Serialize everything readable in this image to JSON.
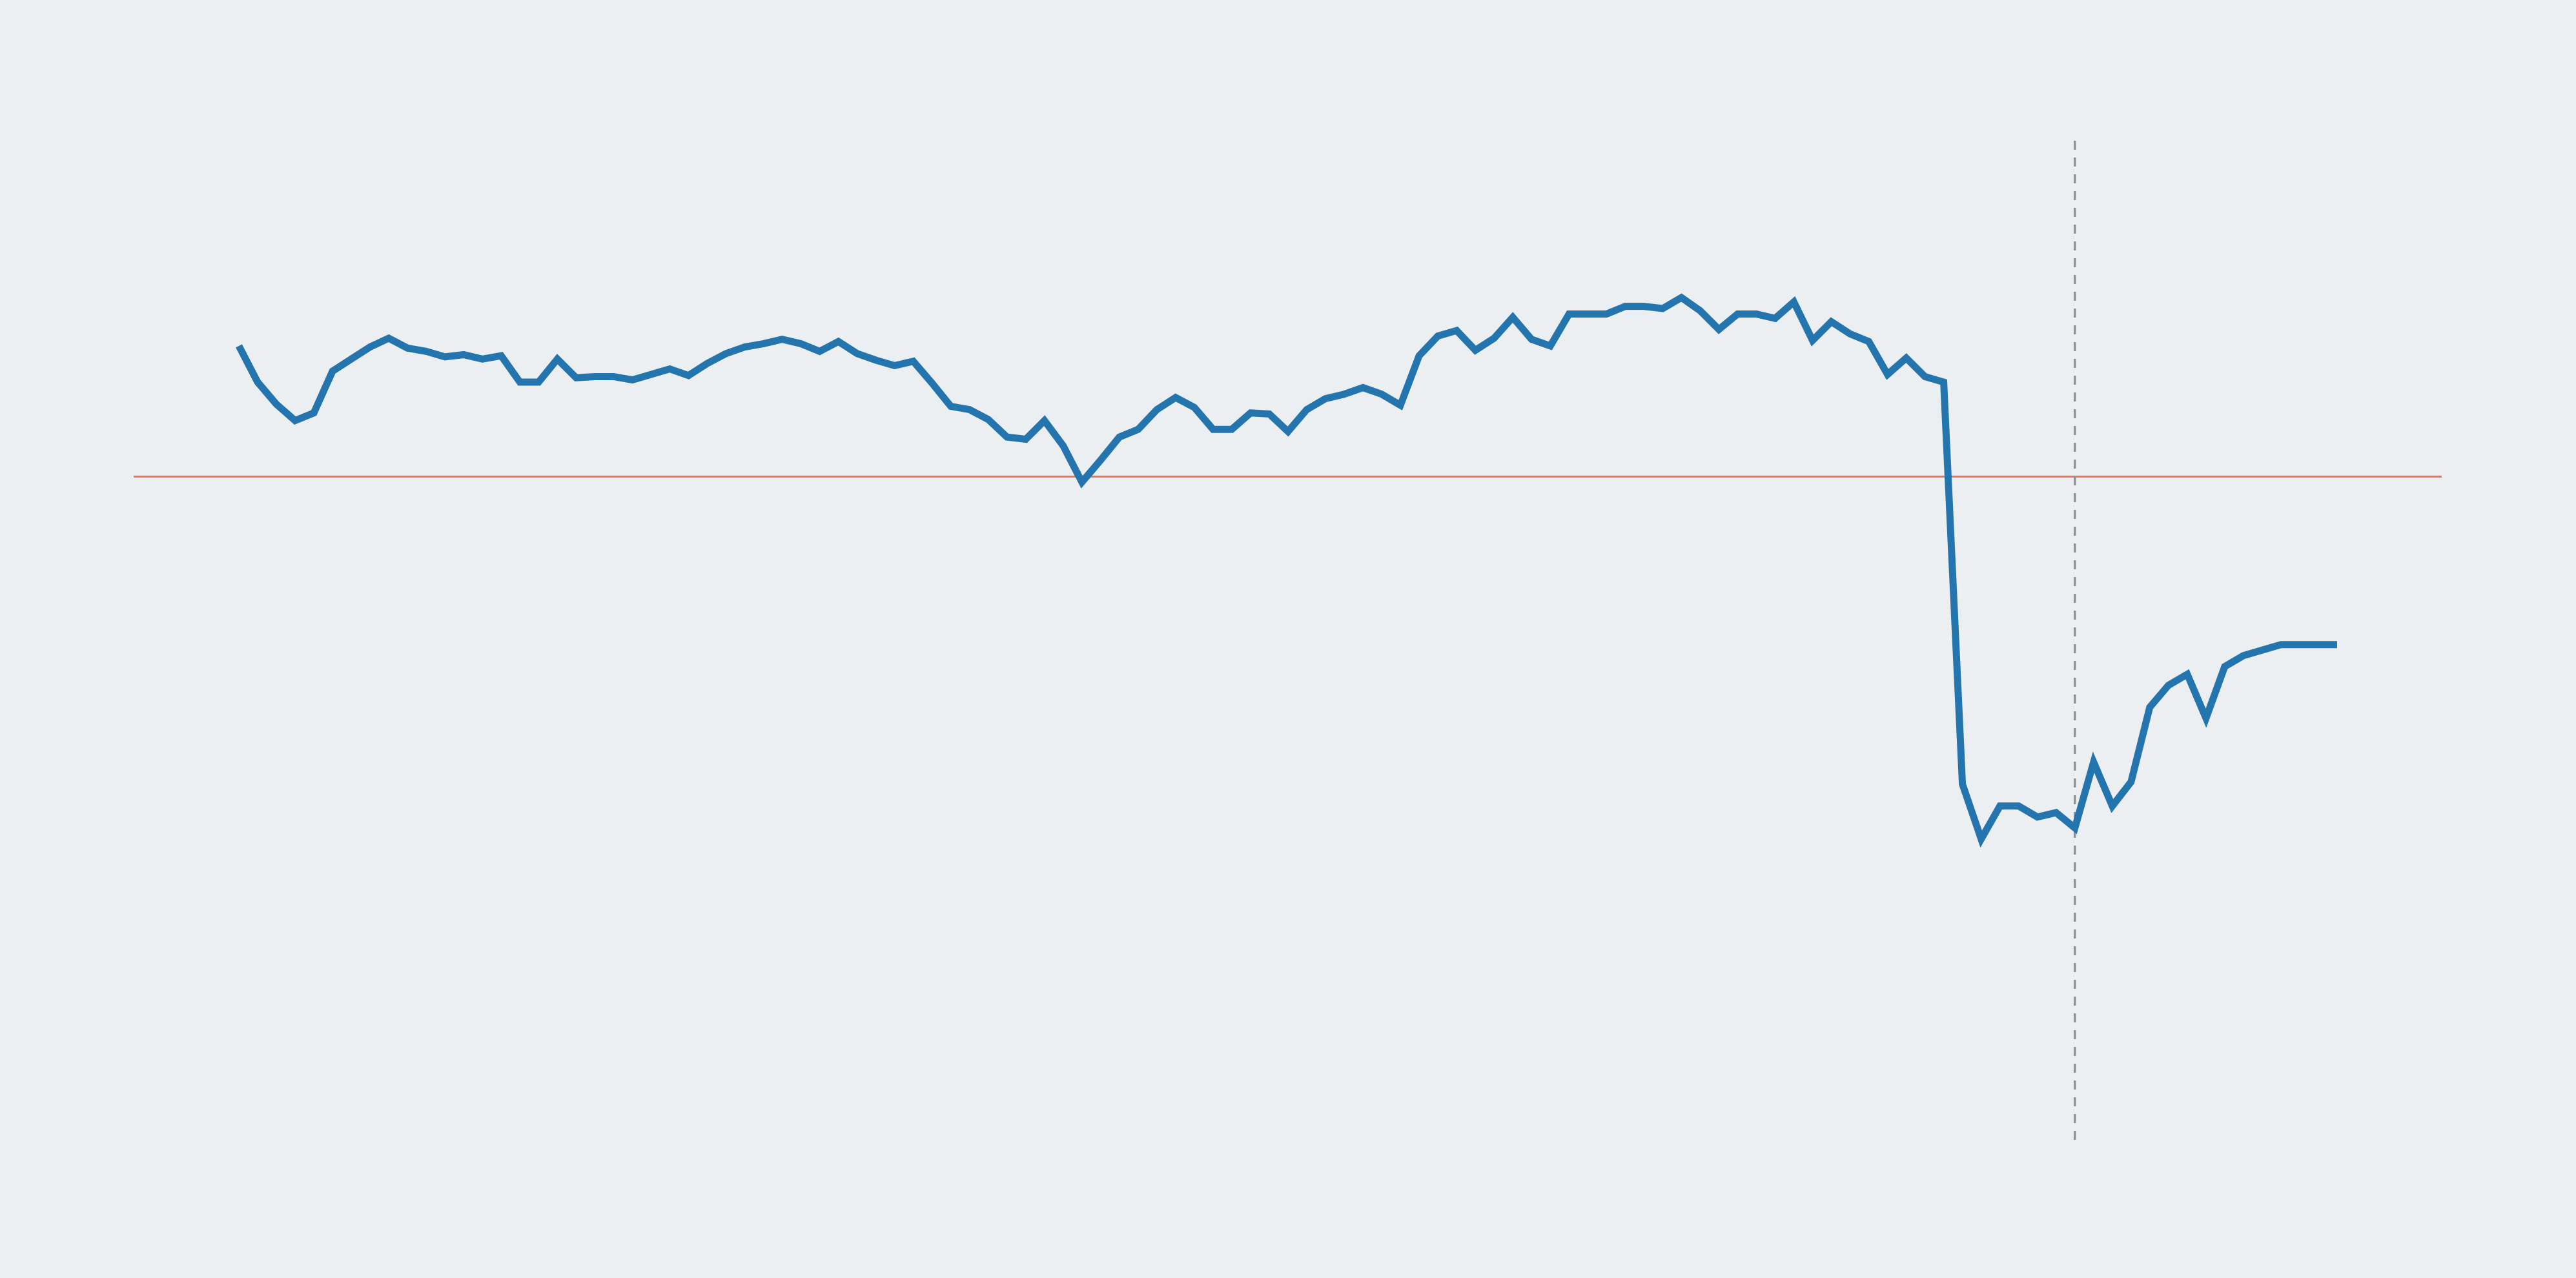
{
  "chart_data": {
    "type": "line",
    "title": "",
    "xlabel": "",
    "ylabel": "",
    "grid": false,
    "legend": "none",
    "x_start": 1,
    "x_end": 113,
    "ylim": [
      -43,
      24
    ],
    "baseline": {
      "value": 0,
      "color": "#e8765a"
    },
    "marker": {
      "x": 99,
      "color": "#8f9398"
    },
    "series": [
      {
        "color": "#2474ad",
        "values": [
          11.9,
          8.6,
          6.6,
          5.1,
          5.8,
          9.6,
          10.7,
          11.8,
          12.6,
          11.7,
          11.4,
          10.9,
          11.1,
          10.7,
          11.0,
          8.6,
          8.6,
          10.7,
          9.0,
          9.1,
          9.1,
          8.8,
          9.3,
          9.8,
          9.2,
          10.3,
          11.2,
          11.8,
          12.1,
          12.5,
          12.1,
          11.4,
          12.3,
          11.2,
          10.6,
          10.1,
          10.5,
          8.5,
          6.4,
          6.1,
          5.2,
          3.6,
          3.4,
          5.1,
          2.8,
          -0.5,
          1.5,
          3.6,
          4.3,
          6.1,
          7.2,
          6.3,
          4.3,
          4.3,
          5.8,
          5.7,
          4.1,
          6.1,
          7.1,
          7.5,
          8.1,
          7.5,
          6.5,
          11.0,
          12.8,
          13.3,
          11.5,
          12.6,
          14.5,
          12.5,
          11.9,
          14.8,
          14.8,
          14.8,
          15.5,
          15.5,
          15.3,
          16.3,
          15.1,
          13.4,
          14.8,
          14.8,
          14.4,
          15.9,
          12.4,
          14.1,
          13.0,
          12.3,
          9.3,
          10.8,
          9.1,
          8.6,
          -28.0,
          -33.0,
          -30.0,
          -30.0,
          -31.0,
          -30.6,
          -32.0,
          -26.0,
          -30.0,
          -27.8,
          -21.0,
          -19.0,
          -18.0,
          -22.0,
          -17.3,
          -16.3,
          -15.8,
          -15.3,
          -15.3,
          -15.3,
          -15.3
        ],
        "note": "placeholder"
      }
    ]
  }
}
